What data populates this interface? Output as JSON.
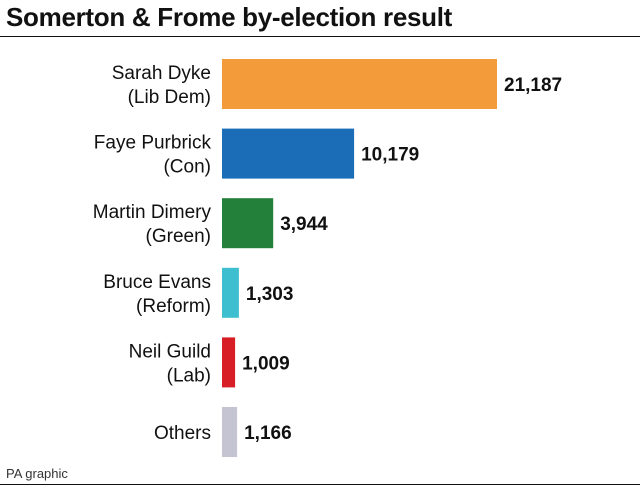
{
  "header": {
    "title": "Somerton & Frome by-election result"
  },
  "footer": {
    "source": "PA graphic"
  },
  "chart_data": {
    "type": "bar",
    "orientation": "horizontal",
    "title": "Somerton & Frome by-election result",
    "xlabel": "",
    "ylabel": "",
    "grid": false,
    "legend": "none",
    "categories": [
      [
        "Sarah Dyke",
        "(Lib Dem)"
      ],
      [
        "Faye Purbrick",
        "(Con)"
      ],
      [
        "Martin Dimery",
        "(Green)"
      ],
      [
        "Bruce Evans",
        "(Reform)"
      ],
      [
        "Neil Guild",
        "(Lab)"
      ],
      [
        "Others"
      ]
    ],
    "values": [
      21187,
      10179,
      3944,
      1303,
      1009,
      1166
    ],
    "value_labels": [
      "21,187",
      "10,179",
      "3,944",
      "1,303",
      "1,009",
      "1,166"
    ],
    "colors": [
      "#F39B3B",
      "#1B6DB7",
      "#22803A",
      "#3EBFCF",
      "#D71E26",
      "#C4C4D3"
    ],
    "xlim": [
      0,
      21187
    ]
  }
}
